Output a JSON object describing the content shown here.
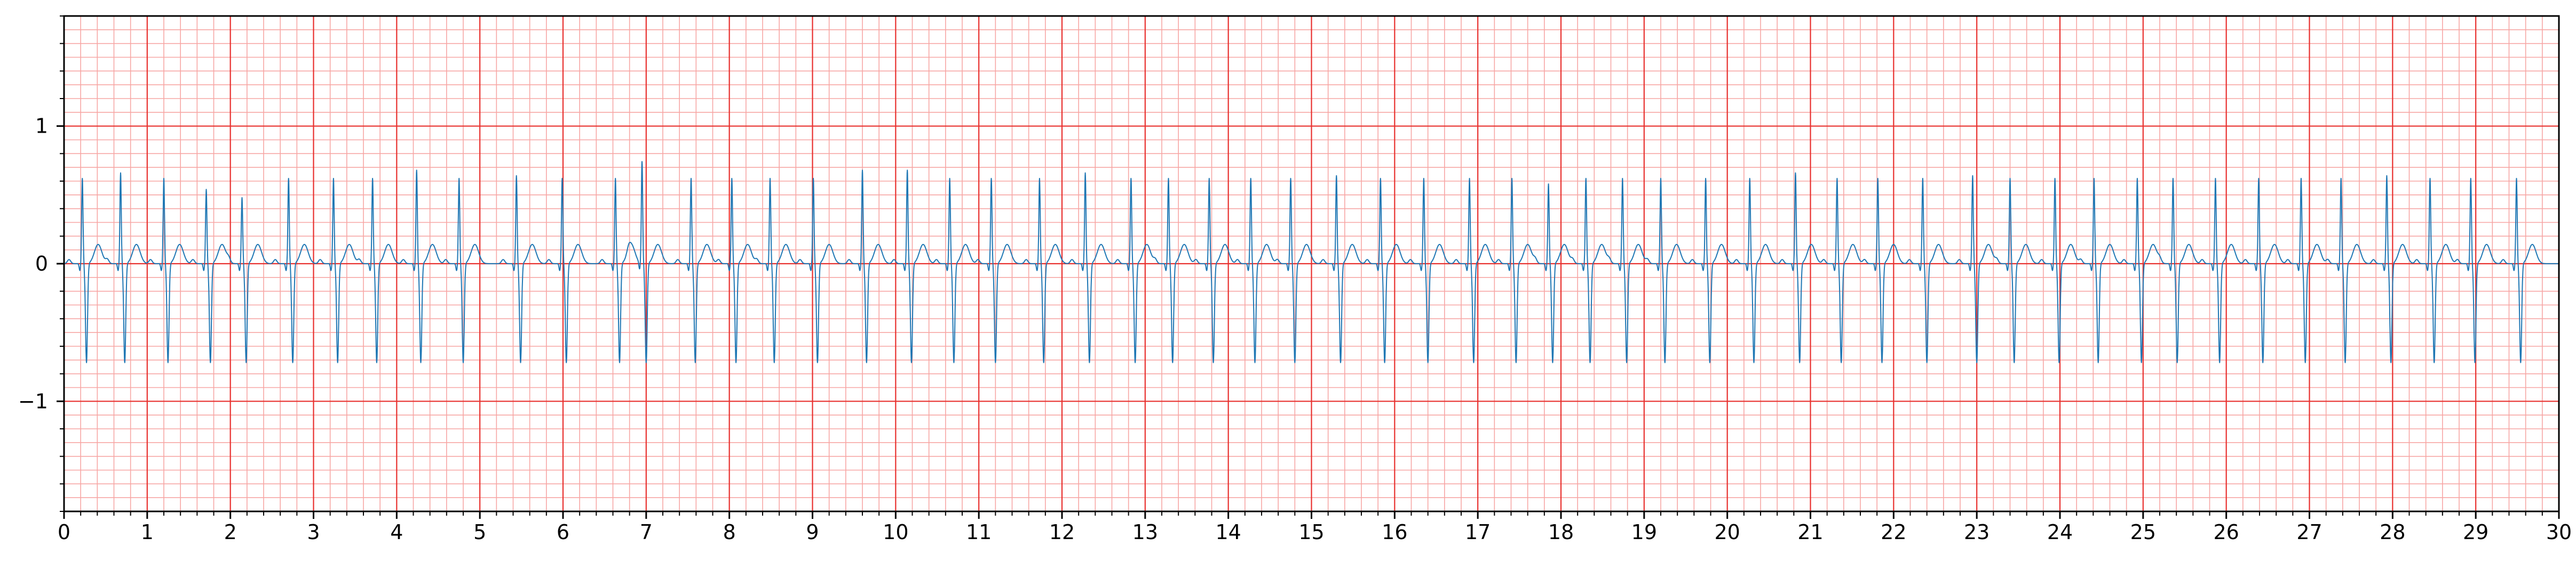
{
  "chart_data": {
    "type": "line",
    "title": "",
    "xlabel": "",
    "ylabel": "",
    "xlim": [
      0,
      30
    ],
    "ylim": [
      -1.8,
      1.8
    ],
    "x_ticks": [
      0,
      1,
      2,
      3,
      4,
      5,
      6,
      7,
      8,
      9,
      10,
      11,
      12,
      13,
      14,
      15,
      16,
      17,
      18,
      19,
      20,
      21,
      22,
      23,
      24,
      25,
      26,
      27,
      28,
      29,
      30
    ],
    "x_tick_labels": [
      "0",
      "1",
      "2",
      "3",
      "4",
      "5",
      "6",
      "7",
      "8",
      "9",
      "10",
      "11",
      "12",
      "13",
      "14",
      "15",
      "16",
      "17",
      "18",
      "19",
      "20",
      "21",
      "22",
      "23",
      "24",
      "25",
      "26",
      "27",
      "28",
      "29",
      "30"
    ],
    "y_ticks": [
      -1,
      0,
      1
    ],
    "y_tick_labels": [
      "−1",
      "0",
      "1"
    ],
    "grid": {
      "major": true,
      "minor": true,
      "major_color": "#e8302e",
      "minor_color": "#f7a6a4",
      "major_x_step": 1,
      "minor_x_step": 0.2,
      "major_y_step": 1,
      "minor_y_step": 0.1
    },
    "line_color": "#1f77b4",
    "series": [
      {
        "r_peak_times": [
          0.22,
          0.68,
          1.2,
          1.71,
          2.14,
          2.7,
          3.24,
          3.71,
          4.24,
          4.75,
          5.44,
          5.99,
          6.63,
          6.95,
          7.54,
          8.03,
          8.49,
          9.01,
          9.6,
          10.14,
          10.65,
          11.15,
          11.73,
          12.28,
          12.83,
          13.28,
          13.77,
          14.27,
          14.75,
          15.3,
          15.83,
          16.35,
          16.9,
          17.41,
          17.85,
          18.3,
          18.74,
          19.2,
          19.74,
          20.27,
          20.82,
          21.32,
          21.81,
          22.35,
          22.95,
          23.4,
          23.94,
          24.41,
          24.93,
          25.36,
          25.87,
          26.39,
          26.9,
          27.38,
          27.93,
          28.45,
          28.94,
          29.49
        ]
      }
    ]
  }
}
